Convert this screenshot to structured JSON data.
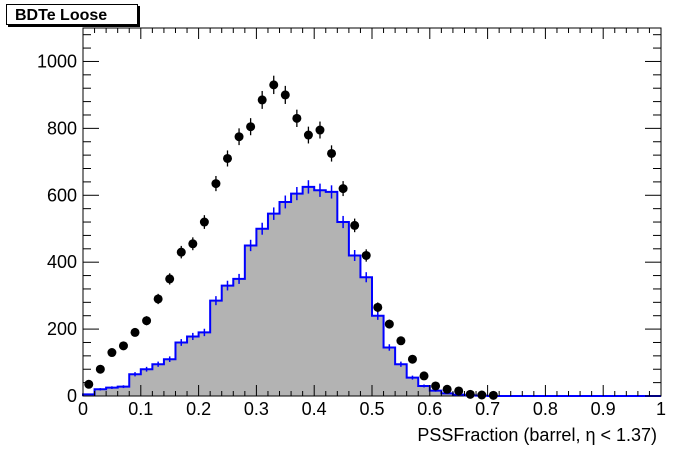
{
  "chart_data": {
    "type": "histogram",
    "title": "BDTe Loose",
    "xlabel": "PSSFraction (barrel,  η < 1.37)",
    "ylabel": "",
    "xlim": [
      0,
      1
    ],
    "ylim": [
      0,
      1100
    ],
    "x_ticks": [
      "0",
      "0.1",
      "0.2",
      "0.3",
      "0.4",
      "0.5",
      "0.6",
      "0.7",
      "0.8",
      "0.9",
      "1"
    ],
    "y_ticks": [
      "0",
      "200",
      "400",
      "600",
      "800",
      "1000"
    ],
    "grid": false,
    "bin_width": 0.02,
    "bin_edges_start": 0,
    "series": [
      {
        "kind": "filled-histogram",
        "fill_color": "#b3b3b3",
        "line_color": "#0000ff",
        "values": [
          5,
          20,
          25,
          28,
          65,
          80,
          95,
          110,
          160,
          178,
          190,
          285,
          330,
          350,
          450,
          500,
          545,
          580,
          605,
          625,
          615,
          610,
          520,
          420,
          355,
          240,
          145,
          95,
          55,
          30,
          16,
          8,
          4,
          2,
          1,
          0,
          0,
          0,
          0,
          0,
          0,
          0,
          0,
          0,
          0,
          0,
          0,
          0,
          0,
          0
        ]
      },
      {
        "kind": "points",
        "color": "#000000",
        "values": [
          35,
          80,
          130,
          150,
          190,
          225,
          290,
          350,
          430,
          455,
          520,
          635,
          710,
          775,
          805,
          885,
          930,
          900,
          830,
          780,
          795,
          725,
          620,
          510,
          420,
          265,
          215,
          165,
          110,
          60,
          30,
          20,
          15,
          5,
          3,
          2,
          0,
          0,
          0,
          0,
          0,
          0,
          0,
          0,
          0,
          0,
          0,
          0,
          0,
          0
        ]
      }
    ]
  }
}
